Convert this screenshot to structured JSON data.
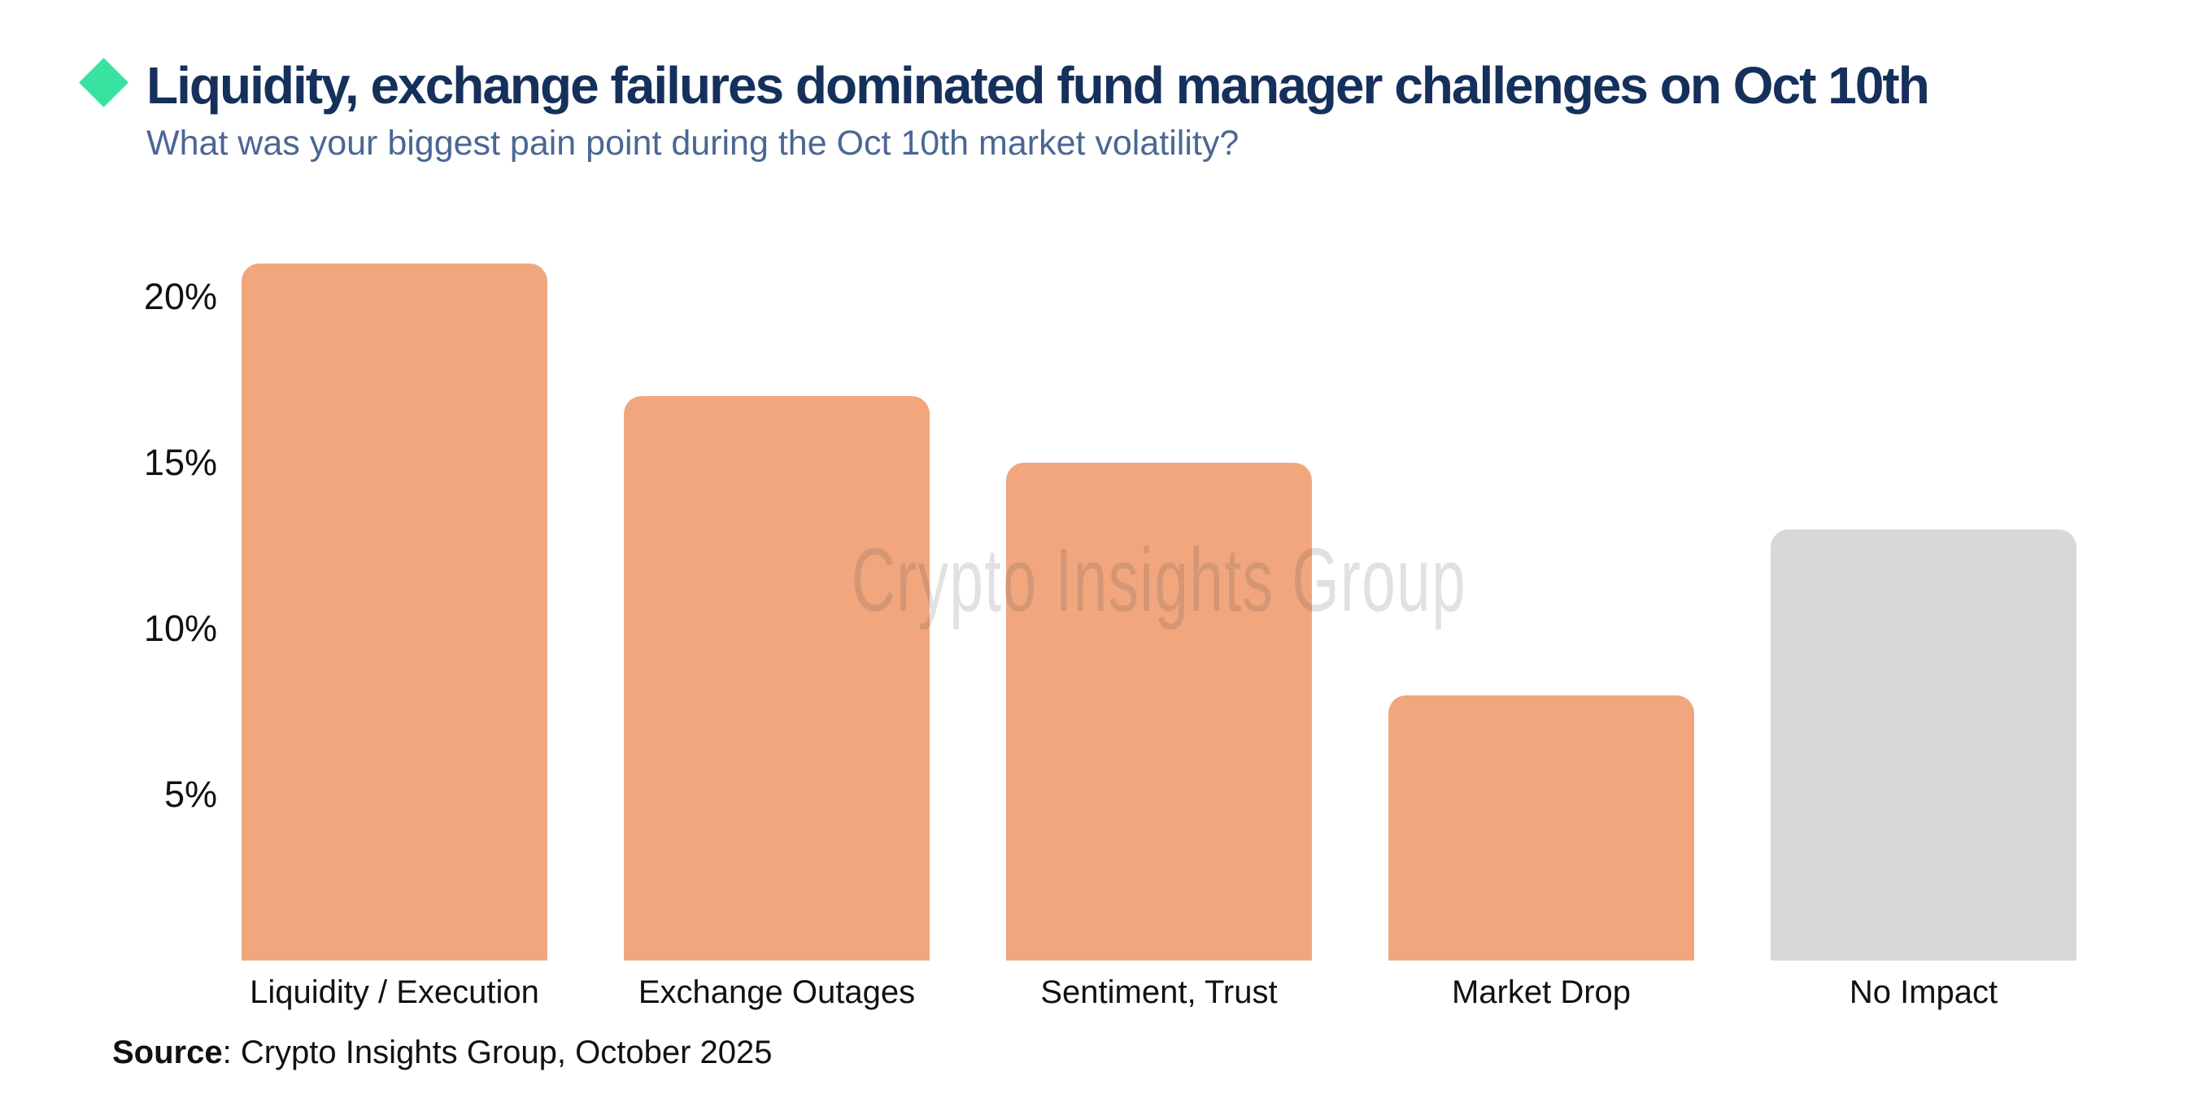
{
  "header": {
    "title": "Liquidity, exchange failures dominated fund manager challenges on Oct 10th",
    "subtitle": "What was your biggest pain point during the Oct 10th market volatility?",
    "bullet_icon": "diamond-icon",
    "accent_color": "#38E3A1",
    "title_color": "#16305C",
    "subtitle_color": "#4A6794"
  },
  "chart_data": {
    "type": "bar",
    "title": "Liquidity, exchange failures dominated fund manager challenges on Oct 10th",
    "subtitle": "What was your biggest pain point during the Oct 10th market volatility?",
    "categories": [
      "Liquidity / Execution",
      "Exchange Outages",
      "Sentiment, Trust",
      "Market Drop",
      "No Impact"
    ],
    "values": [
      21,
      17,
      15,
      8,
      13
    ],
    "unit": "%",
    "xlabel": "",
    "ylabel": "",
    "ylim": [
      0,
      22
    ],
    "yticks": [
      5,
      10,
      15,
      20
    ],
    "ytick_labels": [
      "5%",
      "10%",
      "15%",
      "20%"
    ],
    "grid": false,
    "legend": "none",
    "bar_colors": [
      "#F1A67E",
      "#F1A67E",
      "#F1A67E",
      "#F1A67E",
      "#D8D8D8"
    ],
    "highlight_color": "#F1A67E",
    "muted_color": "#D8D8D8",
    "watermark": "Crypto Insights Group"
  },
  "footer": {
    "source_label": "Source",
    "source_rest": ": Crypto Insights Group, October 2025"
  }
}
